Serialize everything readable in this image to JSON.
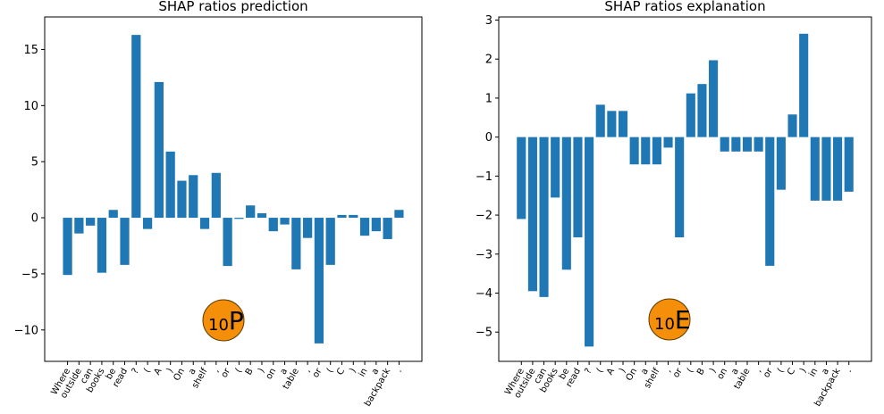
{
  "accent_color": "#1f77b4",
  "badge_color": "#f58f0a",
  "chart_data": [
    {
      "type": "bar",
      "title": "SHAP ratios prediction",
      "categories": [
        "Where",
        "outside",
        "can",
        "books",
        "be",
        "read",
        "?",
        "(",
        "A",
        ")",
        "On",
        "a",
        "shelf",
        ",",
        "or",
        "(",
        "B",
        ")",
        "on",
        "a",
        "table",
        ",",
        "or",
        "(",
        "C",
        ")",
        "in",
        "a",
        "backpack",
        "."
      ],
      "values": [
        -5.1,
        -1.4,
        -0.7,
        -4.9,
        0.7,
        -4.2,
        16.3,
        -1.0,
        12.1,
        5.9,
        3.3,
        3.8,
        -1.0,
        4.0,
        -4.3,
        -0.1,
        1.1,
        0.4,
        -1.2,
        -0.6,
        -4.6,
        -1.8,
        -11.2,
        -4.2,
        0.25,
        0.25,
        -1.6,
        -1.2,
        -1.9,
        0.7
      ],
      "yticks": [
        -10,
        -5,
        0,
        5,
        10,
        15
      ],
      "ylim": [
        -12.8,
        17.9
      ],
      "badge": {
        "sub": "10",
        "letter": "P"
      }
    },
    {
      "type": "bar",
      "title": "SHAP ratios explanation",
      "categories": [
        "Where",
        "outside",
        "can",
        "books",
        "be",
        "read",
        "?",
        "(",
        "A",
        ")",
        "On",
        "a",
        "shelf",
        ",",
        "or",
        "(",
        "B",
        ")",
        "on",
        "a",
        "table",
        ",",
        "or",
        "(",
        "C",
        ")",
        "in",
        "a",
        "backpack",
        "."
      ],
      "values": [
        -2.1,
        -3.95,
        -4.1,
        -1.55,
        -3.4,
        -2.57,
        -5.37,
        0.83,
        0.67,
        0.67,
        -0.7,
        -0.7,
        -0.7,
        -0.27,
        -2.57,
        1.12,
        1.36,
        1.97,
        -0.37,
        -0.37,
        -0.37,
        -0.37,
        -3.3,
        -1.35,
        0.58,
        2.65,
        -1.63,
        -1.63,
        -1.63,
        -1.4
      ],
      "yticks": [
        -5,
        -4,
        -3,
        -2,
        -1,
        0,
        1,
        2,
        3
      ],
      "ylim": [
        -5.75,
        3.08
      ],
      "badge": {
        "sub": "10",
        "letter": "E"
      }
    }
  ]
}
